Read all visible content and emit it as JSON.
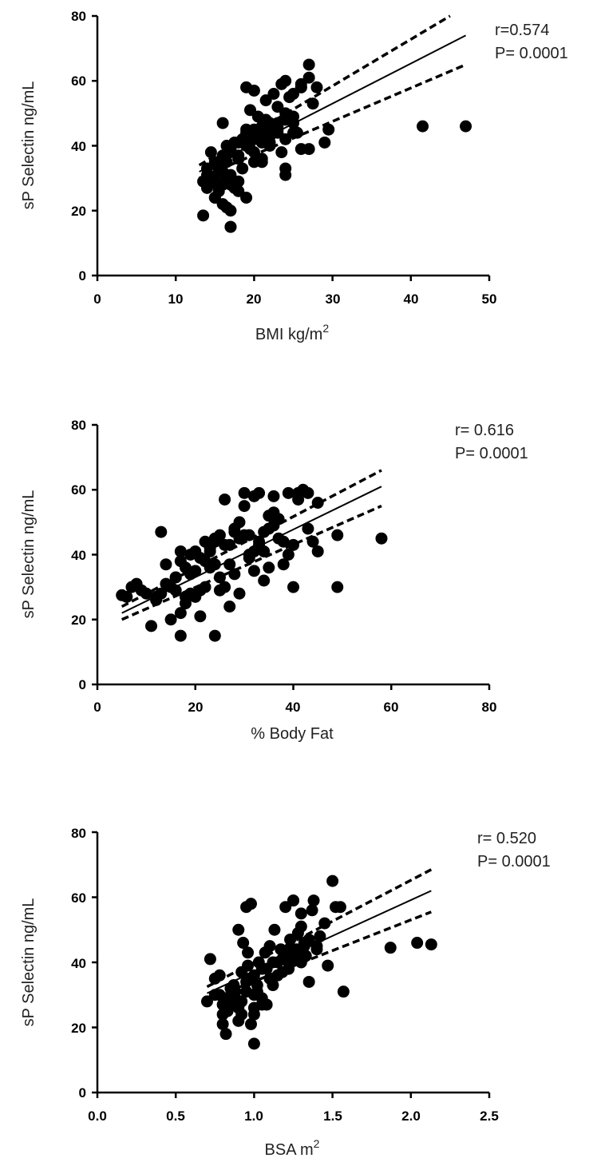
{
  "chart_data": [
    {
      "type": "scatter",
      "xlabel": "BMI kg/m",
      "xlabel_sup": "2",
      "ylabel": "sP Selectin ng/mL",
      "xlim": [
        0,
        50
      ],
      "ylim": [
        0,
        80
      ],
      "xticks": [
        0,
        10,
        20,
        30,
        40,
        50
      ],
      "yticks": [
        0,
        20,
        40,
        60,
        80
      ],
      "xtick_labels": [
        "0",
        "10",
        "20",
        "30",
        "40",
        "50"
      ],
      "ytick_labels": [
        "0",
        "20",
        "40",
        "60",
        "80"
      ],
      "annotations": [
        "r=0.574",
        "P= 0.0001"
      ],
      "fit": {
        "x": [
          13,
          47
        ],
        "y": [
          32,
          74
        ]
      },
      "ci_upper": {
        "x": [
          13,
          45
        ],
        "y": [
          34,
          80
        ]
      },
      "ci_lower": {
        "x": [
          13,
          47
        ],
        "y": [
          30,
          65
        ]
      },
      "x": [
        13.5,
        14,
        14,
        14.5,
        15,
        15,
        15.5,
        15.5,
        16,
        16,
        16.5,
        16.5,
        17,
        17,
        17.5,
        17.5,
        18,
        18,
        18.5,
        18.5,
        19,
        19,
        19.5,
        19.5,
        20,
        20,
        20.5,
        20.5,
        21,
        21,
        21.5,
        21.5,
        22,
        22,
        22.5,
        22.5,
        23,
        23,
        23.5,
        23.5,
        24,
        24,
        24.5,
        25,
        25,
        25.5,
        26,
        26,
        27,
        27,
        27.5,
        28,
        29,
        29.5,
        13.5,
        14,
        15,
        16,
        17,
        14.5,
        15.5,
        16.5,
        17,
        18,
        19,
        20,
        21,
        22,
        23,
        24,
        25,
        26,
        15,
        16,
        17,
        18,
        19,
        20,
        21,
        22,
        23,
        24,
        16,
        17,
        18,
        20,
        22,
        24,
        26,
        27,
        19,
        21,
        23,
        25,
        41.5,
        47,
        16.5,
        17,
        15,
        16,
        20,
        22,
        19,
        24,
        18,
        21
      ],
      "y": [
        18.5,
        27,
        31,
        38,
        24,
        29,
        26,
        33,
        22,
        36,
        30,
        40,
        20,
        15,
        41,
        27,
        37,
        29,
        33,
        42,
        24,
        45,
        39,
        51,
        43,
        35,
        44,
        49,
        36,
        46,
        48,
        54,
        40,
        47,
        45,
        56,
        52,
        44,
        59,
        38,
        60,
        42,
        55,
        56,
        47,
        44,
        58,
        59,
        61,
        65,
        53,
        58,
        41,
        45,
        29,
        33,
        35,
        28,
        31,
        29,
        27,
        35,
        38,
        36,
        43,
        42,
        45,
        43,
        47,
        33,
        44,
        39,
        30,
        32,
        28,
        36,
        40,
        38,
        42,
        44,
        46,
        48,
        37,
        39,
        41,
        45,
        43,
        50,
        58,
        39,
        44,
        41,
        45,
        49,
        46,
        46,
        21,
        15,
        24,
        47,
        57,
        41,
        58,
        31,
        26,
        35
      ]
    },
    {
      "type": "scatter",
      "xlabel": "% Body Fat",
      "ylabel": "sP Selectin ng/mL",
      "xlim": [
        0,
        80
      ],
      "ylim": [
        0,
        80
      ],
      "xticks": [
        0,
        20,
        40,
        60,
        80
      ],
      "yticks": [
        0,
        20,
        40,
        60,
        80
      ],
      "xtick_labels": [
        "0",
        "20",
        "40",
        "60",
        "80"
      ],
      "ytick_labels": [
        "0",
        "20",
        "40",
        "60",
        "80"
      ],
      "annotations": [
        "r= 0.616",
        "P= 0.0001"
      ],
      "fit": {
        "x": [
          5,
          58
        ],
        "y": [
          22,
          61
        ]
      },
      "ci_upper": {
        "x": [
          5,
          58
        ],
        "y": [
          24,
          66
        ]
      },
      "ci_lower": {
        "x": [
          5,
          58
        ],
        "y": [
          20,
          55
        ]
      },
      "x": [
        5,
        6,
        7,
        8,
        9,
        10,
        11,
        12,
        13,
        13,
        14,
        15,
        15,
        16,
        16,
        17,
        17,
        17,
        18,
        18,
        19,
        19,
        20,
        20,
        21,
        21,
        22,
        22,
        23,
        23,
        24,
        24,
        25,
        25,
        26,
        26,
        27,
        27,
        28,
        28,
        29,
        29,
        30,
        30,
        31,
        31,
        32,
        32,
        33,
        33,
        34,
        34,
        35,
        35,
        36,
        36,
        37,
        38,
        39,
        40,
        40,
        41,
        42,
        43,
        44,
        45,
        49,
        49,
        58,
        12,
        14,
        16,
        18,
        20,
        22,
        24,
        26,
        28,
        30,
        32,
        34,
        36,
        38,
        21,
        19,
        17,
        23,
        25,
        27,
        29,
        31,
        33,
        24,
        35,
        37,
        39,
        41,
        43,
        45
      ],
      "y": [
        27.5,
        27,
        30,
        31,
        29,
        28,
        18,
        27,
        47,
        28,
        31,
        30,
        20,
        29,
        33,
        22,
        15,
        41,
        25,
        36,
        40,
        28,
        27,
        35,
        21,
        39,
        44,
        30,
        42,
        36,
        37,
        15,
        29,
        46,
        30,
        57,
        43,
        24,
        48,
        34,
        28,
        50,
        55,
        59,
        40,
        46,
        58,
        35,
        59,
        44,
        41,
        32,
        48,
        52,
        58,
        49,
        45,
        37,
        40,
        43,
        30,
        59,
        60,
        59,
        44,
        56,
        30,
        46,
        45,
        26,
        37,
        33,
        27,
        41,
        38,
        45,
        43,
        47,
        46,
        41,
        47,
        53,
        44,
        29,
        34,
        38,
        41,
        33,
        37,
        45,
        39,
        43,
        44,
        36,
        51,
        59,
        57,
        48,
        41
      ]
    },
    {
      "type": "scatter",
      "xlabel": "BSA m",
      "xlabel_sup": "2",
      "ylabel": "sP Selectin ng/mL",
      "xlim": [
        0,
        2.5
      ],
      "ylim": [
        0,
        80
      ],
      "xticks": [
        0,
        0.5,
        1.0,
        1.5,
        2.0,
        2.5
      ],
      "yticks": [
        0,
        20,
        40,
        60,
        80
      ],
      "xtick_labels": [
        "0.0",
        "0.5",
        "1.0",
        "1.5",
        "2.0",
        "2.5"
      ],
      "ytick_labels": [
        "0",
        "20",
        "40",
        "60",
        "80"
      ],
      "annotations": [
        "r= 0.520",
        "P= 0.0001"
      ],
      "fit": {
        "x": [
          0.7,
          2.13
        ],
        "y": [
          30.5,
          62
        ]
      },
      "ci_upper": {
        "x": [
          0.7,
          2.13
        ],
        "y": [
          32.5,
          68.5
        ]
      },
      "ci_lower": {
        "x": [
          0.7,
          2.13
        ],
        "y": [
          28.5,
          55.5
        ]
      },
      "x": [
        0.7,
        0.72,
        0.75,
        0.78,
        0.8,
        0.82,
        0.83,
        0.85,
        0.87,
        0.88,
        0.9,
        0.92,
        0.93,
        0.95,
        0.96,
        0.98,
        1.0,
        1.0,
        1.02,
        1.03,
        1.05,
        1.07,
        1.08,
        1.1,
        1.12,
        1.13,
        1.15,
        1.17,
        1.18,
        1.2,
        1.22,
        1.23,
        1.25,
        1.27,
        1.28,
        1.3,
        1.32,
        1.33,
        1.35,
        1.37,
        1.38,
        1.4,
        1.42,
        1.45,
        1.47,
        1.5,
        1.52,
        1.55,
        1.57,
        1.87,
        2.04,
        2.13,
        0.8,
        0.85,
        0.9,
        0.95,
        1.0,
        1.05,
        0.78,
        0.82,
        0.88,
        0.92,
        0.97,
        1.02,
        1.08,
        1.12,
        1.18,
        1.22,
        1.28,
        1.32,
        0.75,
        0.8,
        0.85,
        0.9,
        0.95,
        1.0,
        1.05,
        1.1,
        1.15,
        1.2,
        1.25,
        1.3,
        1.35,
        1.4,
        0.96,
        1.0,
        0.92,
        0.98,
        1.25,
        1.3,
        1.22
      ],
      "y": [
        28,
        41,
        35,
        30,
        21,
        18,
        25,
        27,
        33,
        29,
        50,
        24,
        46,
        57,
        39,
        58,
        15,
        36,
        31,
        40,
        29,
        43,
        27,
        45,
        33,
        50,
        36,
        44,
        41,
        57,
        38,
        47,
        59,
        44,
        49,
        51,
        45,
        42,
        34,
        56,
        59,
        45,
        48,
        52,
        39,
        65,
        57,
        57,
        31,
        44.5,
        46,
        45.5,
        27,
        32,
        26,
        34,
        30,
        38,
        36,
        29,
        31,
        28,
        35,
        33,
        38,
        40,
        37,
        44,
        41,
        46,
        30,
        24,
        29,
        22,
        31,
        24,
        27,
        35,
        40,
        42,
        43,
        40,
        47,
        44,
        43,
        26,
        37,
        21,
        59,
        55,
        40
      ]
    }
  ]
}
